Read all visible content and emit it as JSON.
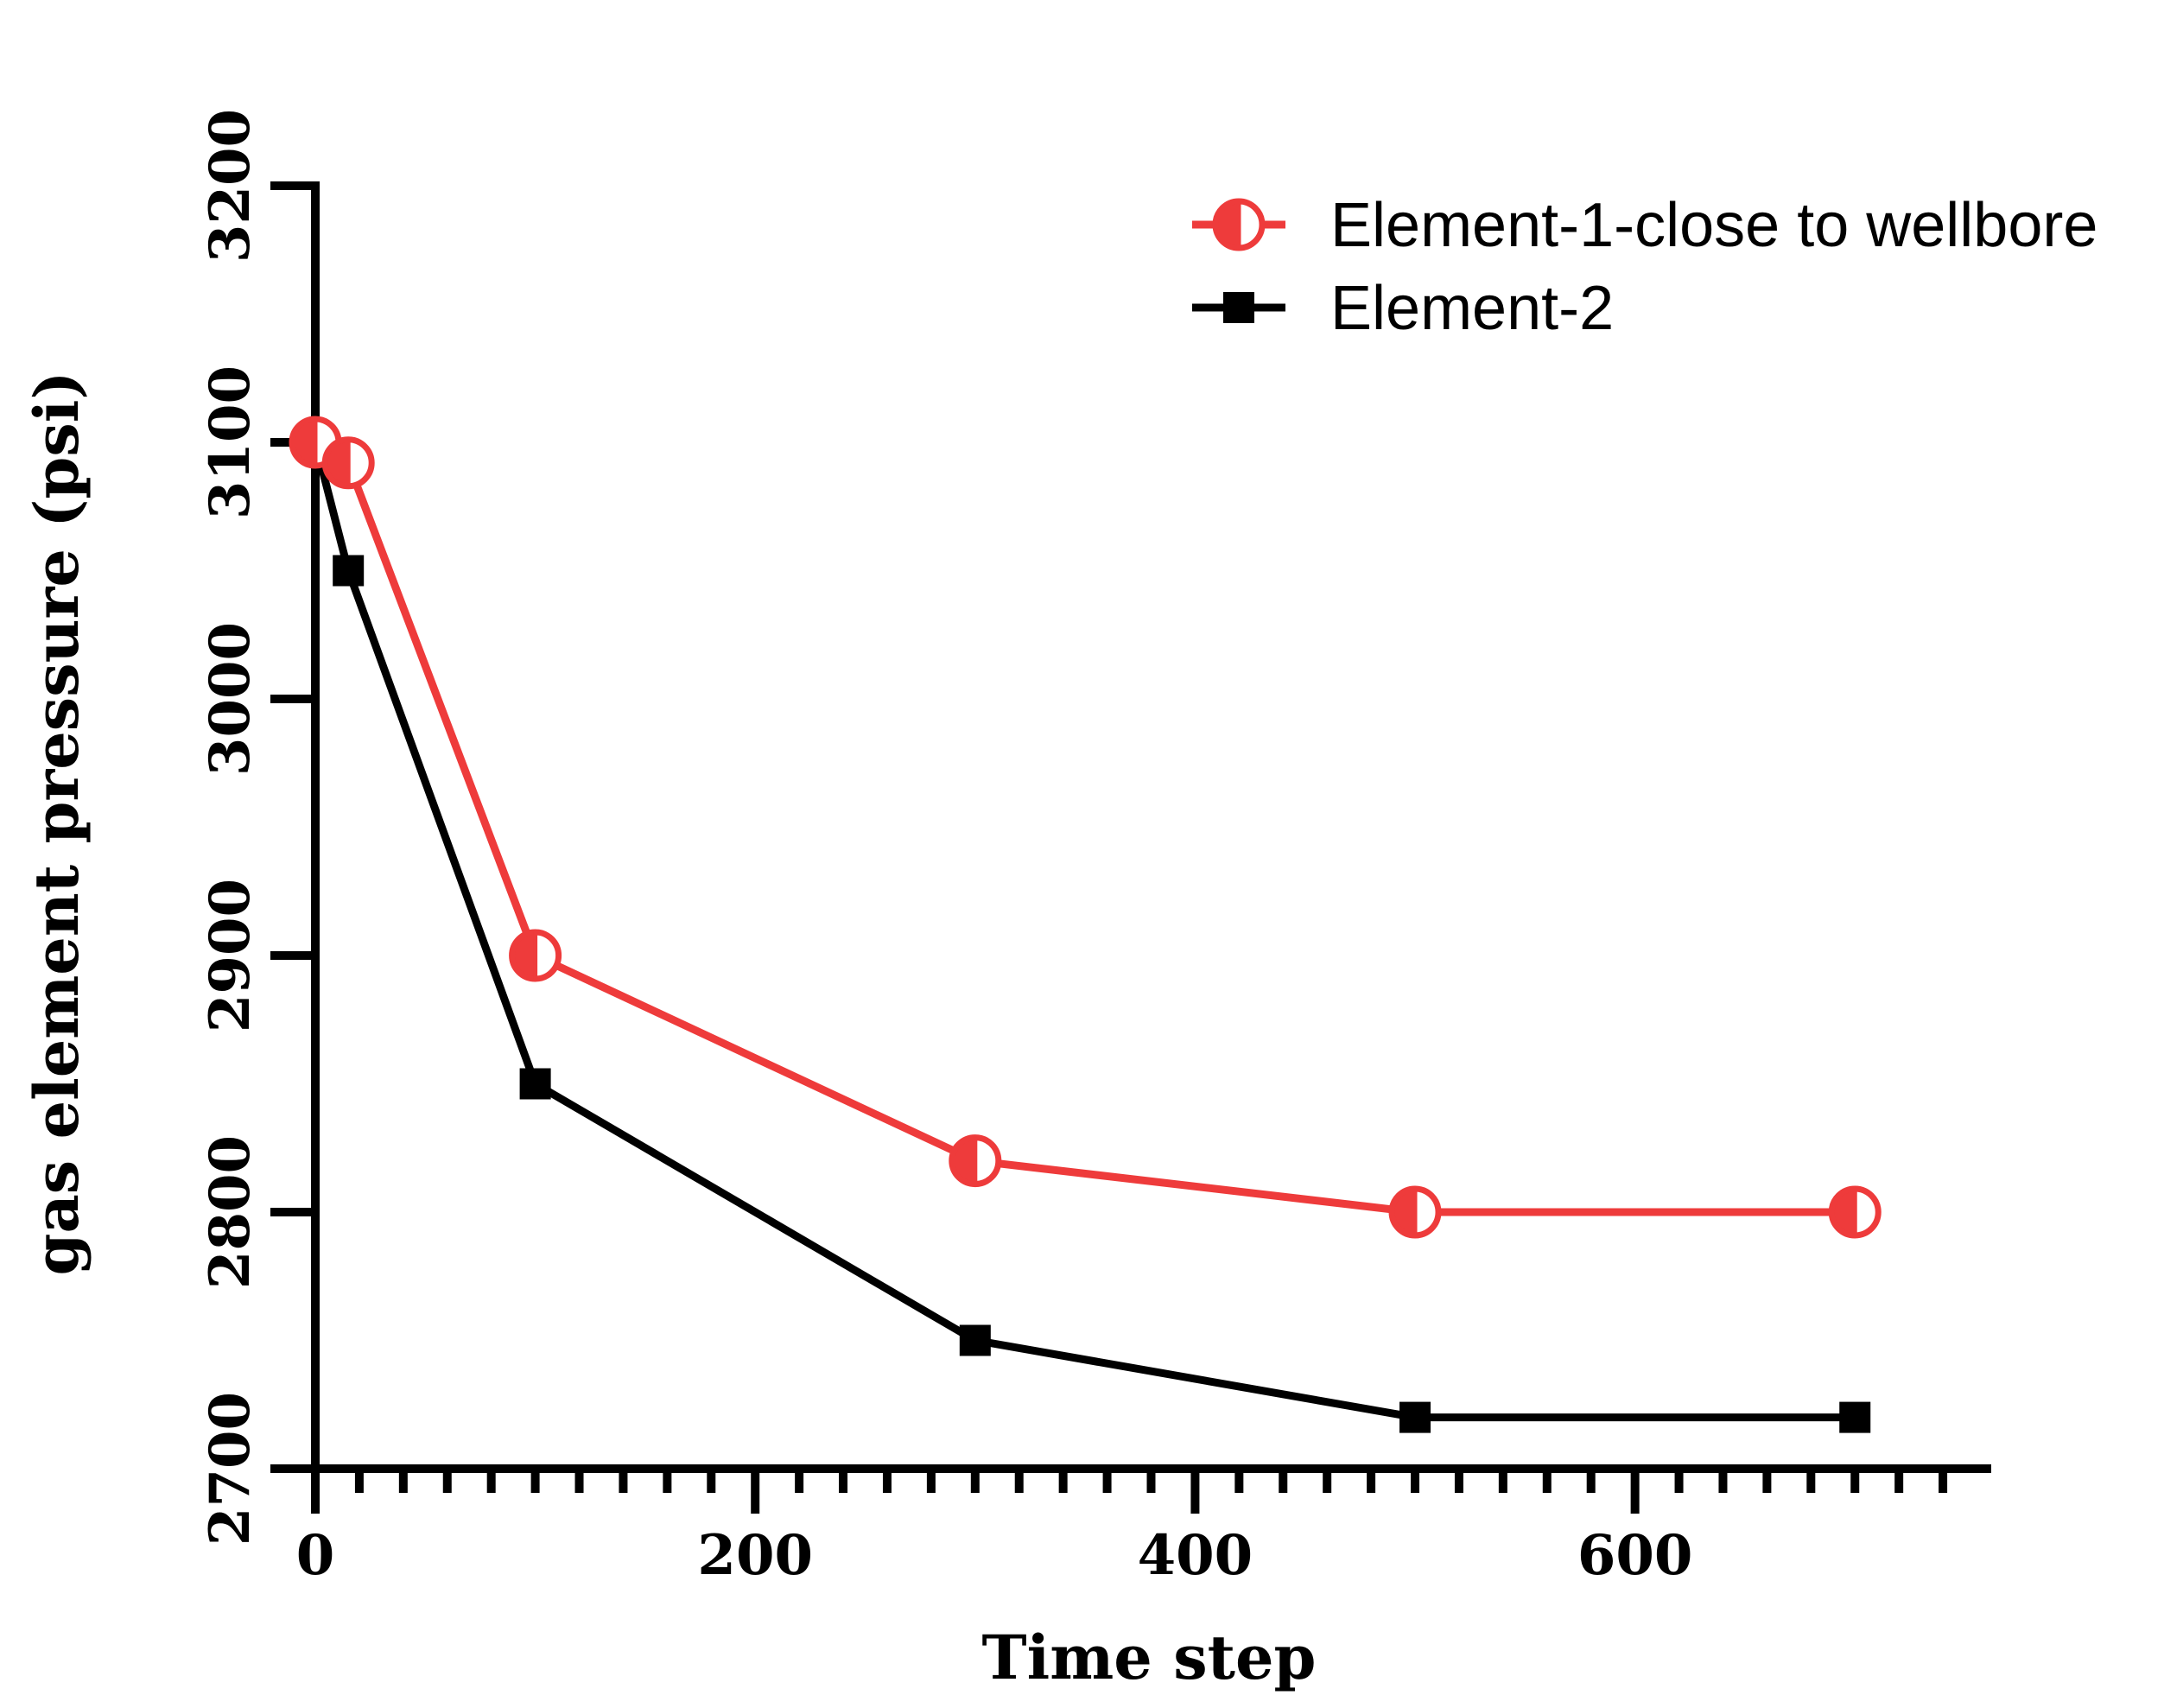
{
  "chart_data": {
    "type": "line",
    "title": "",
    "xlabel": "Time step",
    "ylabel": "gas element pressure (psi)",
    "xlim": [
      0,
      760
    ],
    "ylim": [
      2700,
      3200
    ],
    "x_major_ticks": [
      0,
      200,
      400,
      600
    ],
    "x_major_tick_labels": [
      "0",
      "200",
      "400",
      "600"
    ],
    "x_minor_step": 20,
    "y_ticks": [
      2700,
      2800,
      2900,
      3000,
      3100,
      3200
    ],
    "y_tick_labels": [
      "2700",
      "2800",
      "2900",
      "3000",
      "3100",
      "3200"
    ],
    "grid": false,
    "legend_position": "top-right",
    "series": [
      {
        "name": "Element-1-close to wellbore",
        "color": "#ee3b3b",
        "marker": "half-filled-circle",
        "x": [
          0,
          15,
          100,
          300,
          500,
          700
        ],
        "y": [
          3100,
          3092,
          2900,
          2820,
          2800,
          2800
        ]
      },
      {
        "name": "Element-2",
        "color": "#000000",
        "marker": "filled-square",
        "x": [
          0,
          15,
          100,
          300,
          500,
          700
        ],
        "y": [
          3100,
          3050,
          2850,
          2750,
          2720,
          2720
        ]
      }
    ]
  }
}
